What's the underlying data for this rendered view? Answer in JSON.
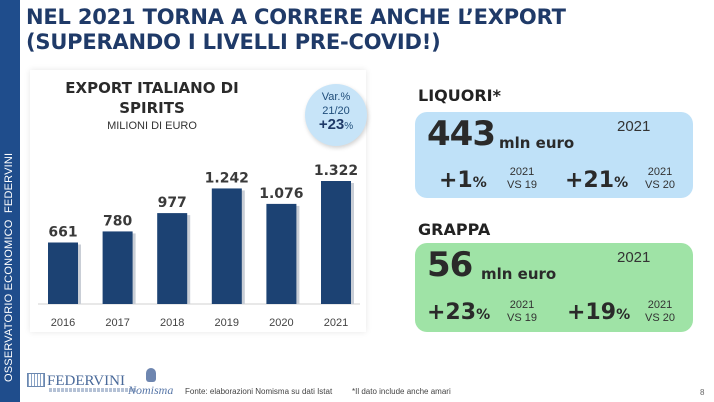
{
  "sidebar": {
    "text": "OSSERVATORIO ECONOMICO  FEDERVINI"
  },
  "title": {
    "line1": "NEL 2021 TORNA A CORRERE ANCHE L’EXPORT",
    "line2": "(SUPERANDO I LIVELLI PRE-COVID!)"
  },
  "chart_data": {
    "type": "bar",
    "title": "EXPORT ITALIANO DI SPIRITS",
    "title_line1": "EXPORT ITALIANO DI",
    "title_line2": "SPIRITS",
    "subtitle": "MILIONI DI EURO",
    "xlabel": "",
    "ylabel": "",
    "categories": [
      "2016",
      "2017",
      "2018",
      "2019",
      "2020",
      "2021"
    ],
    "values": [
      661,
      780,
      977,
      1242,
      1076,
      1322
    ],
    "value_labels": [
      "661",
      "780",
      "977",
      "1.242",
      "1.076",
      "1.322"
    ],
    "ylim": [
      0,
      1400
    ],
    "grid": false,
    "bar_color": "#1c4273"
  },
  "variation_badge": {
    "line1": "Var.%",
    "line2": "21/20",
    "value": "+23",
    "unit": "%"
  },
  "liquori": {
    "label": "LIQUORI*",
    "value": "443",
    "unit": "mln euro",
    "year": "2021",
    "changes": [
      {
        "value": "+1",
        "unit": "%",
        "cmp_year": "2021",
        "cmp_vs": "VS 19"
      },
      {
        "value": "+21",
        "unit": "%",
        "cmp_year": "2021",
        "cmp_vs": "VS 20"
      }
    ],
    "color": "#bfe1f8"
  },
  "grappa": {
    "label": "GRAPPA",
    "value": "56",
    "unit": "mln euro",
    "year": "2021",
    "changes": [
      {
        "value": "+23",
        "unit": "%",
        "cmp_year": "2021",
        "cmp_vs": "VS 19"
      },
      {
        "value": "+19",
        "unit": "%",
        "cmp_year": "2021",
        "cmp_vs": "VS 20"
      }
    ],
    "color": "#9fe3a6"
  },
  "footer": {
    "logo1": "FEDERVINI",
    "logo2": "Nomisma",
    "source": "Fonte: elaborazioni Nomisma su dati Istat",
    "note": "*Il dato include anche amari",
    "page": "8"
  }
}
